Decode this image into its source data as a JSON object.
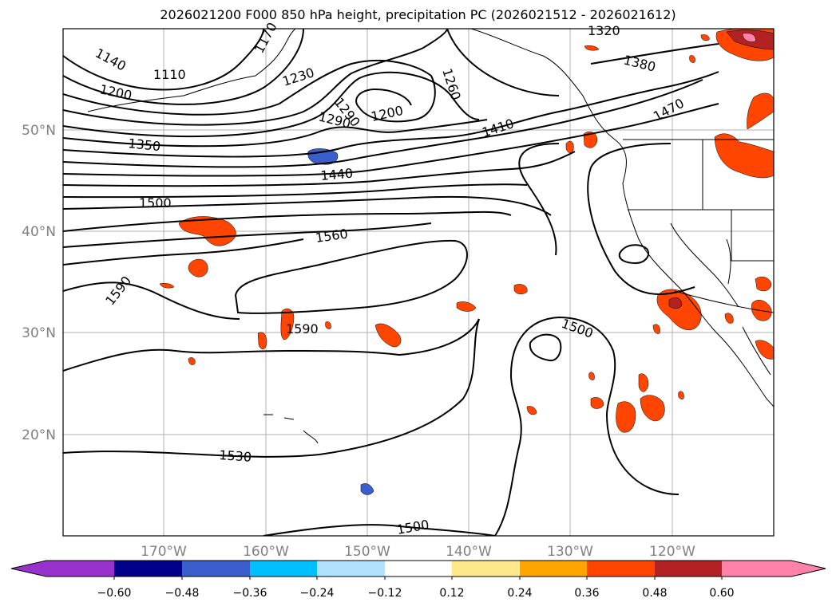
{
  "title": "2026021200 F000 850 hPa height, precipitation PC (2026021512 - 2026021612)",
  "longitude_labels": [
    "170°W",
    "160°W",
    "150°W",
    "140°W",
    "130°W",
    "120°W"
  ],
  "latitude_labels": [
    "50°N",
    "40°N",
    "30°N",
    "20°N"
  ],
  "contour_labels": [
    "1140",
    "1110",
    "1200",
    "1230",
    "1260",
    "1200",
    "1290",
    "1320",
    "1380",
    "1410",
    "1470",
    "1350",
    "1440",
    "1500",
    "1560",
    "1590",
    "1590",
    "1500",
    "1530",
    "1500",
    "1290",
    "1170"
  ],
  "colorbar": {
    "ticks": [
      "−0.60",
      "−0.48",
      "−0.36",
      "−0.24",
      "−0.12",
      "0.12",
      "0.24",
      "0.36",
      "0.48",
      "0.60"
    ],
    "colors": {
      "under": "#9932cc",
      "bins": [
        "#9932cc",
        "#00008b",
        "#3a5fcd",
        "#00bfff",
        "#b0e2ff",
        "#ffffff",
        "#ffe88c",
        "#ffa500",
        "#ff4500",
        "#b22222",
        "#ff82ab"
      ],
      "over": "#ff82ab"
    }
  }
}
